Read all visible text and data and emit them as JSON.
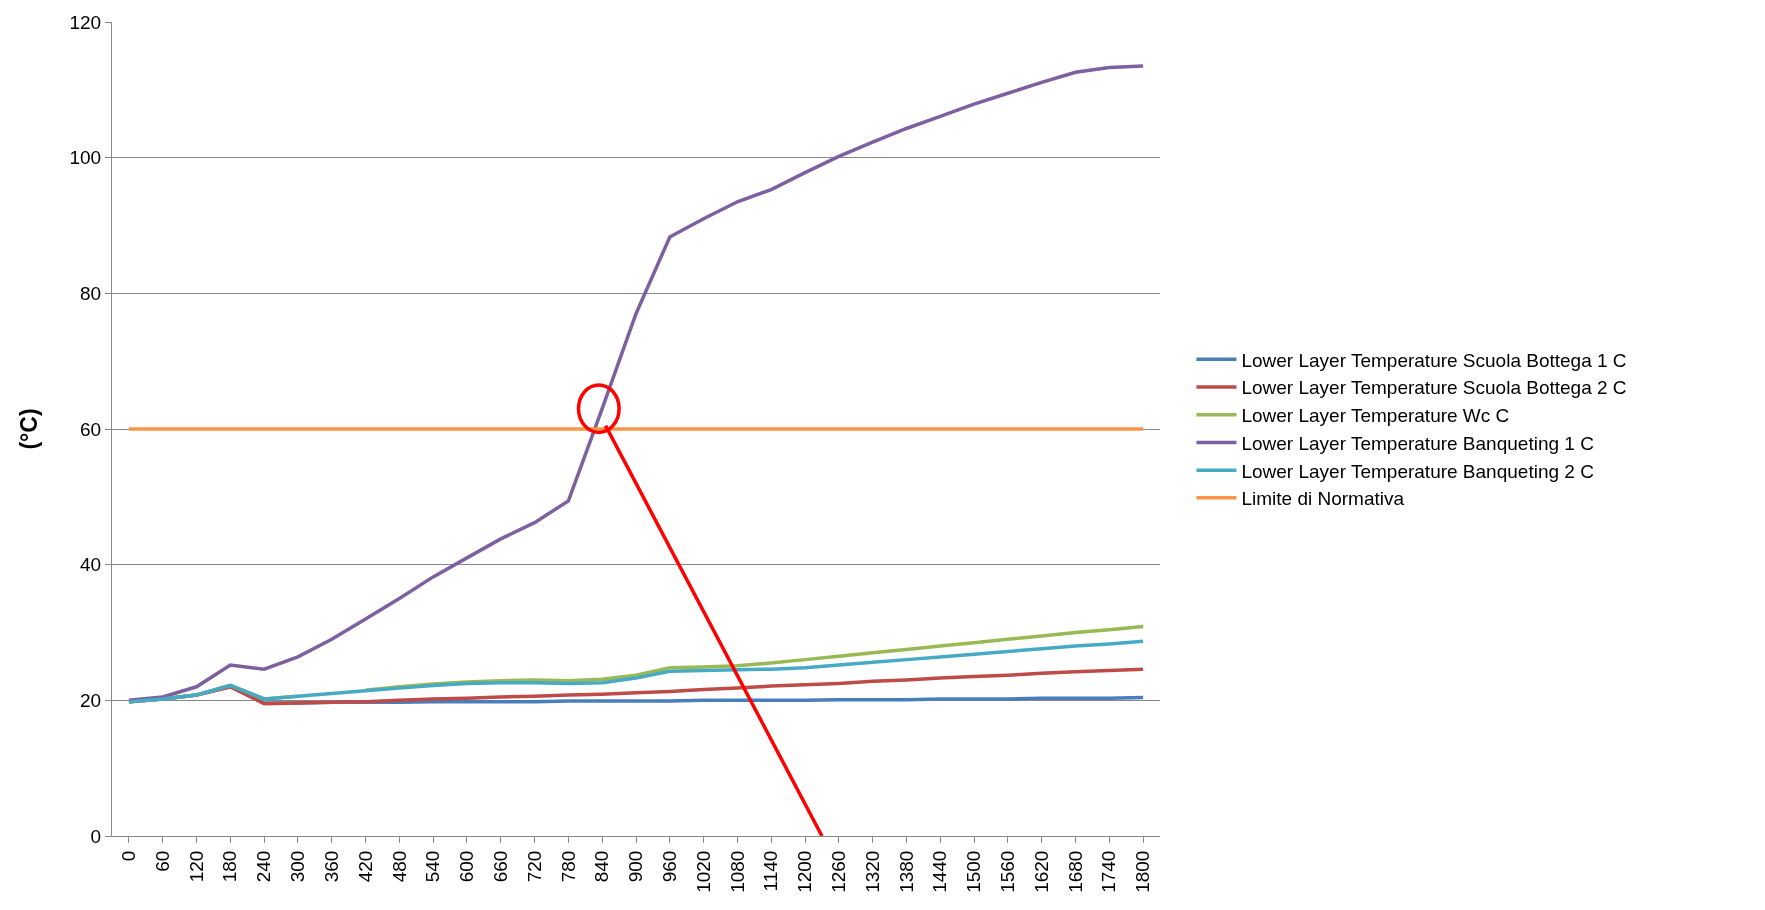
{
  "chart_data": {
    "type": "line",
    "ylabel": "(°C)",
    "categories": [
      "0",
      "60",
      "120",
      "180",
      "240",
      "300",
      "360",
      "420",
      "480",
      "540",
      "600",
      "660",
      "720",
      "780",
      "840",
      "900",
      "960",
      "1020",
      "1080",
      "1140",
      "1200",
      "1260",
      "1320",
      "1380",
      "1440",
      "1500",
      "1560",
      "1620",
      "1680",
      "1740",
      "1800"
    ],
    "series": [
      {
        "name": "Lower Layer Temperature Scuola Bottega 1 C",
        "color": "#4a7ebb",
        "values": [
          19.8,
          20.2,
          20.8,
          22,
          19.6,
          19.6,
          19.7,
          19.7,
          19.7,
          19.8,
          19.8,
          19.8,
          19.8,
          19.9,
          19.9,
          19.9,
          19.9,
          20,
          20,
          20,
          20,
          20.1,
          20.1,
          20.1,
          20.2,
          20.2,
          20.2,
          20.3,
          20.3,
          20.3,
          20.4
        ]
      },
      {
        "name": "Lower Layer Temperature Scuola Bottega 2 C",
        "color": "#be4b48",
        "values": [
          19.8,
          20.2,
          20.8,
          22,
          19.5,
          19.6,
          19.7,
          19.8,
          20,
          20.2,
          20.3,
          20.5,
          20.6,
          20.8,
          20.9,
          21.1,
          21.3,
          21.6,
          21.8,
          22.1,
          22.3,
          22.5,
          22.8,
          23,
          23.3,
          23.5,
          23.7,
          24,
          24.2,
          24.4,
          24.6
        ]
      },
      {
        "name": "Lower Layer Temperature Wc C",
        "color": "#98b954",
        "values": [
          19.8,
          20.2,
          20.8,
          22.2,
          20.2,
          20.6,
          null,
          21.5,
          22,
          22.4,
          22.7,
          22.9,
          23,
          22.9,
          23.1,
          23.7,
          24.8,
          24.9,
          25.1,
          25.5,
          26,
          26.5,
          27,
          27.5,
          28,
          28.5,
          29,
          29.5,
          30,
          30.4,
          30.9
        ]
      },
      {
        "name": "Lower Layer Temperature Banqueting 1 C",
        "color": "#7d60a0",
        "values": [
          20,
          20.5,
          22,
          25.2,
          24.6,
          26.4,
          29,
          32,
          35,
          38.2,
          41,
          43.8,
          46.2,
          49.4,
          63,
          77,
          88.3,
          91,
          93.5,
          95.3,
          97.8,
          100.2,
          102.3,
          104.3,
          106.1,
          107.9,
          109.5,
          111.1,
          112.6,
          113.3,
          113.5
        ]
      },
      {
        "name": "Lower Layer Temperature Banqueting 2 C",
        "color": "#46aac5",
        "values": [
          19.8,
          20.2,
          20.8,
          22.2,
          20.2,
          20.6,
          21,
          21.4,
          21.8,
          22.2,
          22.5,
          22.6,
          22.6,
          22.5,
          22.6,
          23.3,
          24.3,
          24.4,
          24.5,
          24.6,
          24.8,
          25.2,
          25.6,
          26,
          26.4,
          26.8,
          27.2,
          27.6,
          28,
          28.3,
          28.7
        ]
      },
      {
        "name": "Limite di Normativa",
        "color": "#f79646",
        "values": [
          60,
          60,
          60,
          60,
          60,
          60,
          60,
          60,
          60,
          60,
          60,
          60,
          60,
          60,
          60,
          60,
          60,
          60,
          60,
          60,
          60,
          60,
          60,
          60,
          60,
          60,
          60,
          60,
          60,
          60,
          60
        ]
      }
    ],
    "ylim": [
      0,
      120
    ],
    "yticks": [
      0,
      20,
      40,
      60,
      80,
      100,
      120
    ],
    "grid": "y",
    "legend": "right"
  }
}
